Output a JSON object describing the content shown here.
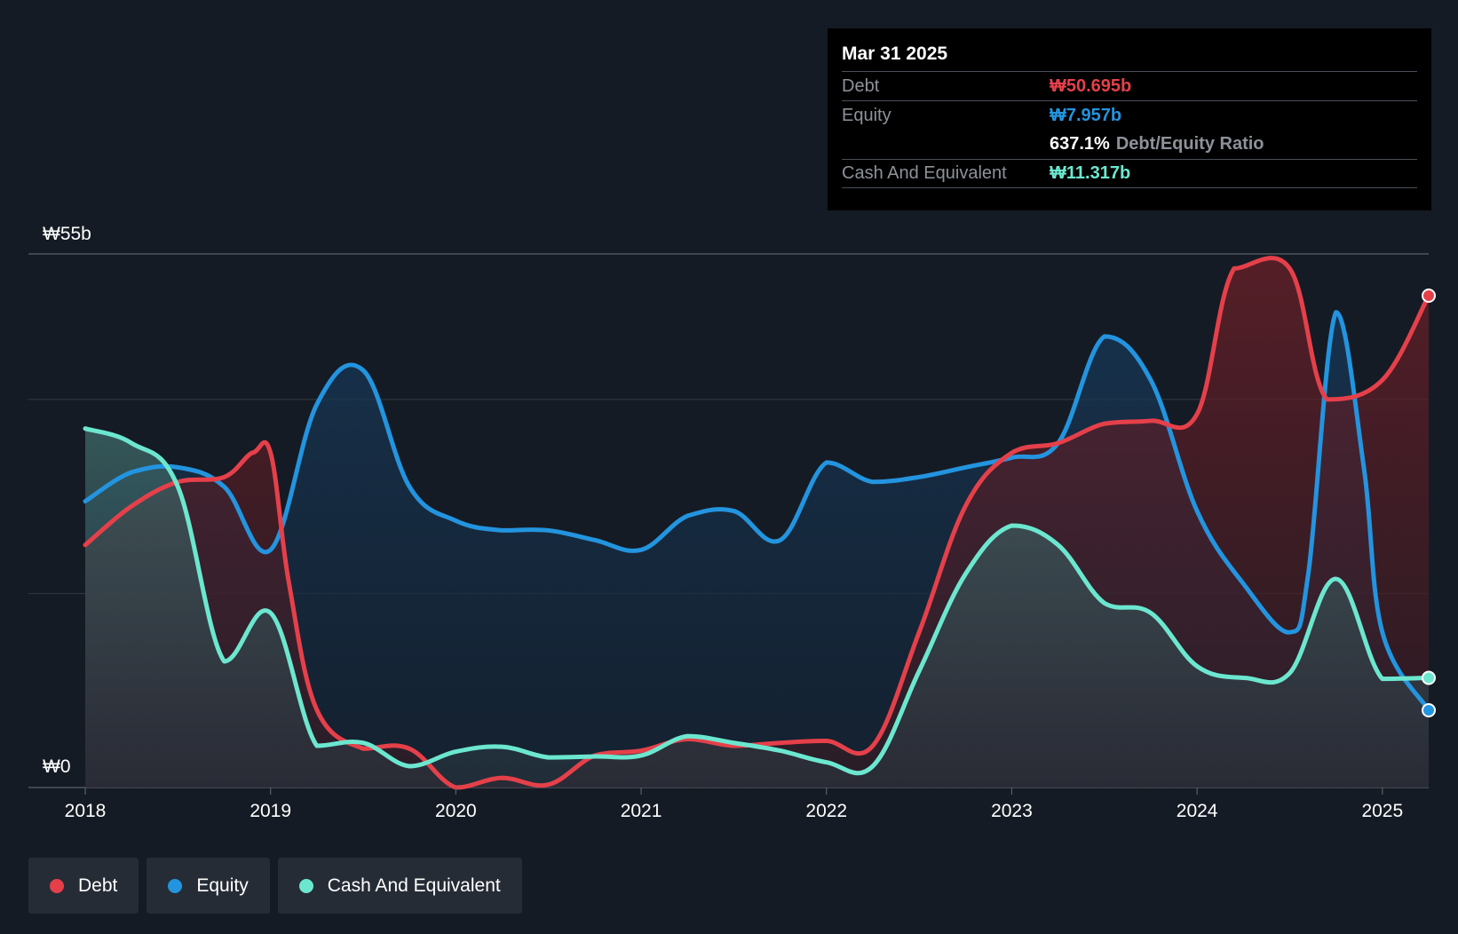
{
  "tooltip": {
    "date": "Mar 31 2025",
    "debt_label": "Debt",
    "debt_value": "₩50.695b",
    "equity_label": "Equity",
    "equity_value": "₩7.957b",
    "ratio_value": "637.1%",
    "ratio_label": "Debt/Equity Ratio",
    "cash_label": "Cash And Equivalent",
    "cash_value": "₩11.317b"
  },
  "legend": [
    {
      "label": "Debt",
      "color": "#e5404a"
    },
    {
      "label": "Equity",
      "color": "#2394df"
    },
    {
      "label": "Cash And Equivalent",
      "color": "#6ce7cf"
    }
  ],
  "chart_data": {
    "type": "area",
    "y_top_label": "₩55b",
    "y_zero_label": "₩0",
    "ylim": [
      0,
      55
    ],
    "xlim": [
      2018.0,
      2025.25
    ],
    "x_ticks": [
      "2018",
      "2019",
      "2020",
      "2021",
      "2022",
      "2023",
      "2024",
      "2025"
    ],
    "grid": true,
    "series": [
      {
        "name": "Debt",
        "color": "#e5404a",
        "points": [
          [
            2018.0,
            25
          ],
          [
            2018.25,
            29
          ],
          [
            2018.5,
            31.5
          ],
          [
            2018.75,
            32
          ],
          [
            2018.9,
            34.5
          ],
          [
            2019.0,
            34.5
          ],
          [
            2019.1,
            21
          ],
          [
            2019.25,
            8
          ],
          [
            2019.5,
            4
          ],
          [
            2019.75,
            4
          ],
          [
            2020.0,
            0
          ],
          [
            2020.25,
            1
          ],
          [
            2020.5,
            0.3
          ],
          [
            2020.75,
            3.3
          ],
          [
            2021.0,
            3.8
          ],
          [
            2021.25,
            5
          ],
          [
            2021.5,
            4.3
          ],
          [
            2021.75,
            4.6
          ],
          [
            2022.0,
            4.8
          ],
          [
            2022.25,
            4.3
          ],
          [
            2022.5,
            16
          ],
          [
            2022.75,
            29
          ],
          [
            2023.0,
            34.5
          ],
          [
            2023.25,
            35.5
          ],
          [
            2023.5,
            37.5
          ],
          [
            2023.75,
            37.8
          ],
          [
            2024.0,
            38.5
          ],
          [
            2024.2,
            53.5
          ],
          [
            2024.5,
            53.5
          ],
          [
            2024.7,
            40
          ],
          [
            2025.0,
            42
          ],
          [
            2025.25,
            50.7
          ]
        ]
      },
      {
        "name": "Equity",
        "color": "#2394df",
        "points": [
          [
            2018.0,
            29.5
          ],
          [
            2018.25,
            32.5
          ],
          [
            2018.5,
            33
          ],
          [
            2018.75,
            31
          ],
          [
            2019.0,
            24.5
          ],
          [
            2019.25,
            39.5
          ],
          [
            2019.5,
            43
          ],
          [
            2019.75,
            31
          ],
          [
            2020.0,
            27.5
          ],
          [
            2020.25,
            26.5
          ],
          [
            2020.5,
            26.5
          ],
          [
            2020.75,
            25.5
          ],
          [
            2021.0,
            24.5
          ],
          [
            2021.25,
            28
          ],
          [
            2021.5,
            28.5
          ],
          [
            2021.75,
            25.5
          ],
          [
            2022.0,
            33.5
          ],
          [
            2022.25,
            31.5
          ],
          [
            2022.5,
            32
          ],
          [
            2022.75,
            33
          ],
          [
            2023.0,
            34
          ],
          [
            2023.25,
            35.5
          ],
          [
            2023.5,
            46.5
          ],
          [
            2023.75,
            42
          ],
          [
            2024.0,
            28.5
          ],
          [
            2024.25,
            21
          ],
          [
            2024.5,
            16
          ],
          [
            2024.6,
            22
          ],
          [
            2024.75,
            49
          ],
          [
            2024.9,
            33
          ],
          [
            2025.0,
            16
          ],
          [
            2025.25,
            7.96
          ]
        ]
      },
      {
        "name": "Cash And Equivalent",
        "color": "#6ce7cf",
        "points": [
          [
            2018.0,
            37
          ],
          [
            2018.25,
            35.5
          ],
          [
            2018.5,
            31
          ],
          [
            2018.75,
            13
          ],
          [
            2019.0,
            18
          ],
          [
            2019.25,
            4.3
          ],
          [
            2019.5,
            4.6
          ],
          [
            2019.75,
            2.2
          ],
          [
            2020.0,
            3.7
          ],
          [
            2020.25,
            4.2
          ],
          [
            2020.5,
            3.1
          ],
          [
            2020.75,
            3.2
          ],
          [
            2021.0,
            3.3
          ],
          [
            2021.25,
            5.3
          ],
          [
            2021.5,
            4.6
          ],
          [
            2021.75,
            3.8
          ],
          [
            2022.0,
            2.6
          ],
          [
            2022.25,
            2.2
          ],
          [
            2022.5,
            12
          ],
          [
            2022.75,
            22
          ],
          [
            2023.0,
            27
          ],
          [
            2023.25,
            25
          ],
          [
            2023.5,
            19
          ],
          [
            2023.75,
            18
          ],
          [
            2024.0,
            12.5
          ],
          [
            2024.25,
            11.3
          ],
          [
            2024.5,
            11.8
          ],
          [
            2024.75,
            21.5
          ],
          [
            2025.0,
            11.2
          ],
          [
            2025.25,
            11.3
          ]
        ]
      }
    ]
  }
}
